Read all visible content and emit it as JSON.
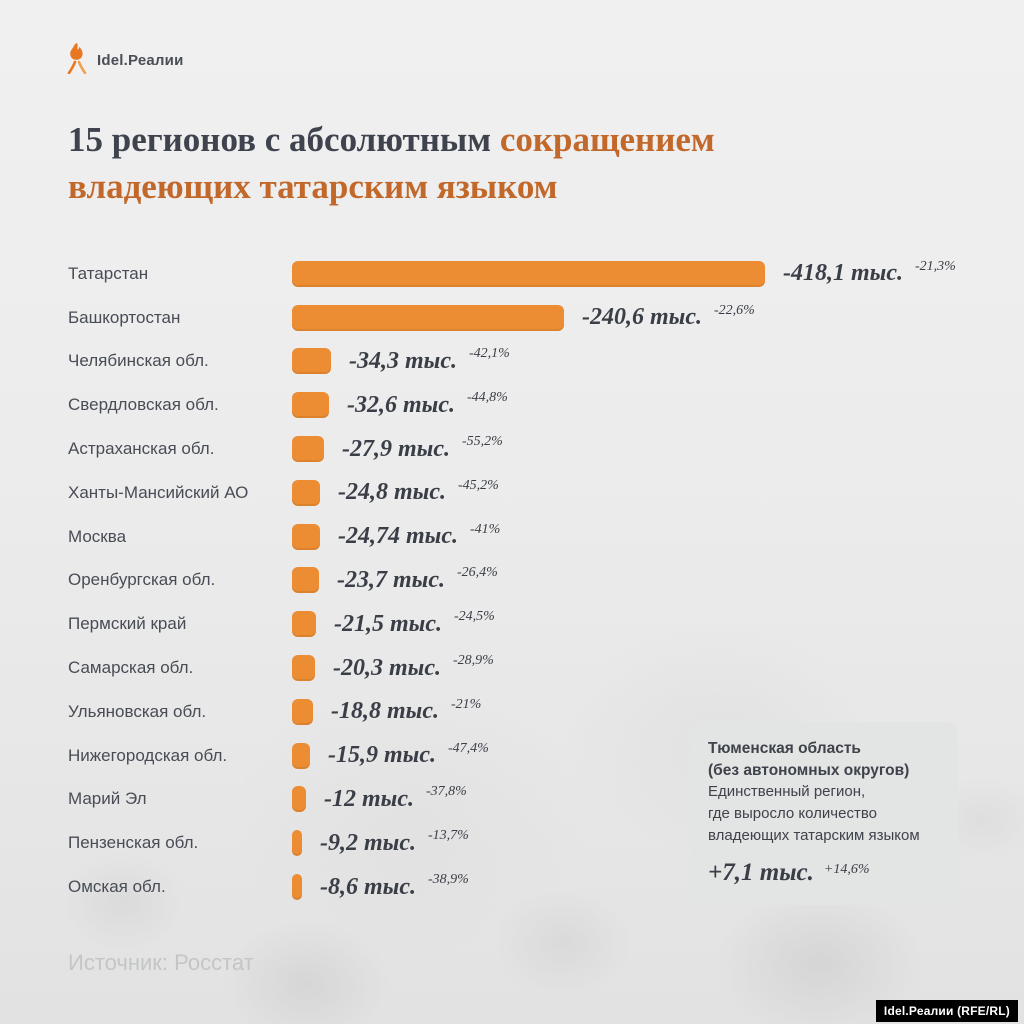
{
  "brand": {
    "name": "Idel.Реалии",
    "accent_color": "#E87722"
  },
  "title": {
    "part1": "15 регионов с абсолютным ",
    "part2": "сокращением",
    "line2": "владеющих татарским языком"
  },
  "chart_data": {
    "type": "bar",
    "orientation": "horizontal",
    "title": "15 регионов с абсолютным сокращением владеющих татарским языком",
    "unit": "тыс. человек",
    "xlim": [
      0,
      418.1
    ],
    "bar_color": "#EC8C33",
    "rows": [
      {
        "region": "Татарстан",
        "value": -418.1,
        "value_label": "-418,1 тыс.",
        "percent_label": "-21,3%"
      },
      {
        "region": "Башкортостан",
        "value": -240.6,
        "value_label": "-240,6 тыс.",
        "percent_label": "-22,6%"
      },
      {
        "region": "Челябинская обл.",
        "value": -34.3,
        "value_label": "-34,3 тыс.",
        "percent_label": "-42,1%"
      },
      {
        "region": "Свердловская обл.",
        "value": -32.6,
        "value_label": "-32,6 тыс.",
        "percent_label": "-44,8%"
      },
      {
        "region": "Астраханская обл.",
        "value": -27.9,
        "value_label": "-27,9 тыс.",
        "percent_label": "-55,2%"
      },
      {
        "region": "Ханты-Мансийский АО",
        "value": -24.8,
        "value_label": "-24,8 тыс.",
        "percent_label": "-45,2%"
      },
      {
        "region": "Москва",
        "value": -24.74,
        "value_label": "-24,74 тыс.",
        "percent_label": "-41%"
      },
      {
        "region": "Оренбургская обл.",
        "value": -23.7,
        "value_label": "-23,7 тыс.",
        "percent_label": "-26,4%"
      },
      {
        "region": "Пермский край",
        "value": -21.5,
        "value_label": "-21,5 тыс.",
        "percent_label": "-24,5%"
      },
      {
        "region": "Самарская обл.",
        "value": -20.3,
        "value_label": "-20,3 тыс.",
        "percent_label": "-28,9%"
      },
      {
        "region": "Ульяновская обл.",
        "value": -18.8,
        "value_label": "-18,8 тыс.",
        "percent_label": "-21%"
      },
      {
        "region": "Нижегородская обл.",
        "value": -15.9,
        "value_label": "-15,9 тыс.",
        "percent_label": "-47,4%"
      },
      {
        "region": "Марий Эл",
        "value": -12,
        "value_label": "-12 тыс.",
        "percent_label": "-37,8%"
      },
      {
        "region": "Пензенская обл.",
        "value": -9.2,
        "value_label": "-9,2 тыс.",
        "percent_label": "-13,7%"
      },
      {
        "region": "Омская обл.",
        "value": -8.6,
        "value_label": "-8,6 тыс.",
        "percent_label": "-38,9%"
      }
    ]
  },
  "callout": {
    "title_line1": "Тюменская область",
    "title_line2": "(без автономных округов)",
    "body_lines": [
      "Единственный регион,",
      "где выросло количество",
      "владеющих татарским языком"
    ],
    "value_label": "+7,1 тыс.",
    "percent_label": "+14,6%"
  },
  "footer": {
    "source": "Источник: Росстат",
    "credit": "Idel.Реалии (RFE/RL)"
  },
  "colors": {
    "bar_orange": "#EC8C33",
    "title_orange": "#C2682A",
    "dark_text": "#3E434D",
    "muted_text": "#C3C5C7",
    "background": "#ECECEC",
    "callout_bg": "#E3E4E4"
  }
}
